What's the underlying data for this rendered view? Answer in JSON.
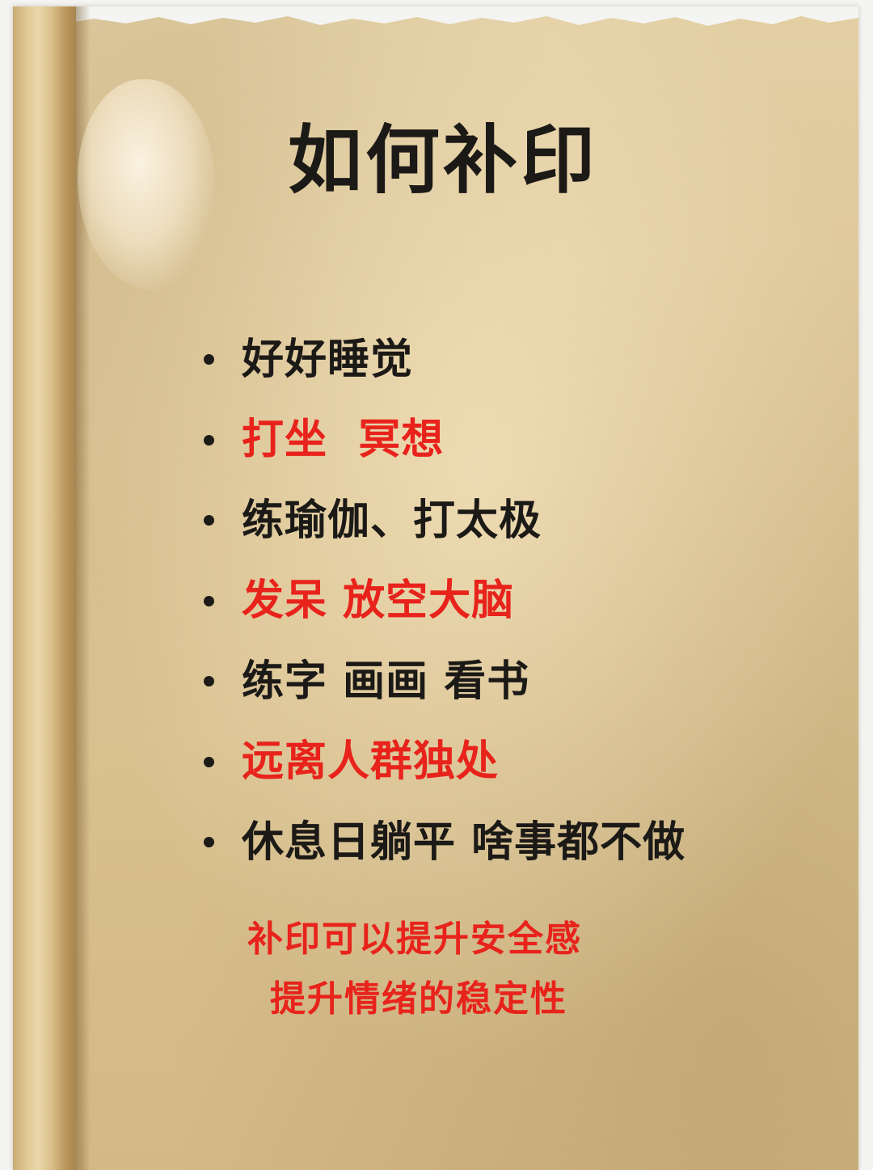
{
  "title": "如何补印",
  "bullets": [
    {
      "text": "好好睡觉",
      "color": "#1c1a17"
    },
    {
      "text": "打坐  冥想",
      "color": "#e8231c"
    },
    {
      "text": "练瑜伽、打太极",
      "color": "#1c1a17"
    },
    {
      "text": "发呆 放空大脑",
      "color": "#e8231c"
    },
    {
      "text": "练字 画画 看书",
      "color": "#1c1a17"
    },
    {
      "text": "远离人群独处",
      "color": "#e8231c"
    },
    {
      "text": "休息日躺平 啥事都不做",
      "color": "#1c1a17"
    }
  ],
  "footer": {
    "line1": "补印可以提升安全感",
    "line2": "提升情绪的稳定性",
    "color": "#e8231c"
  },
  "colors": {
    "paper": "#dbc494",
    "text_dark": "#1c1a17",
    "accent_red": "#e8231c"
  }
}
